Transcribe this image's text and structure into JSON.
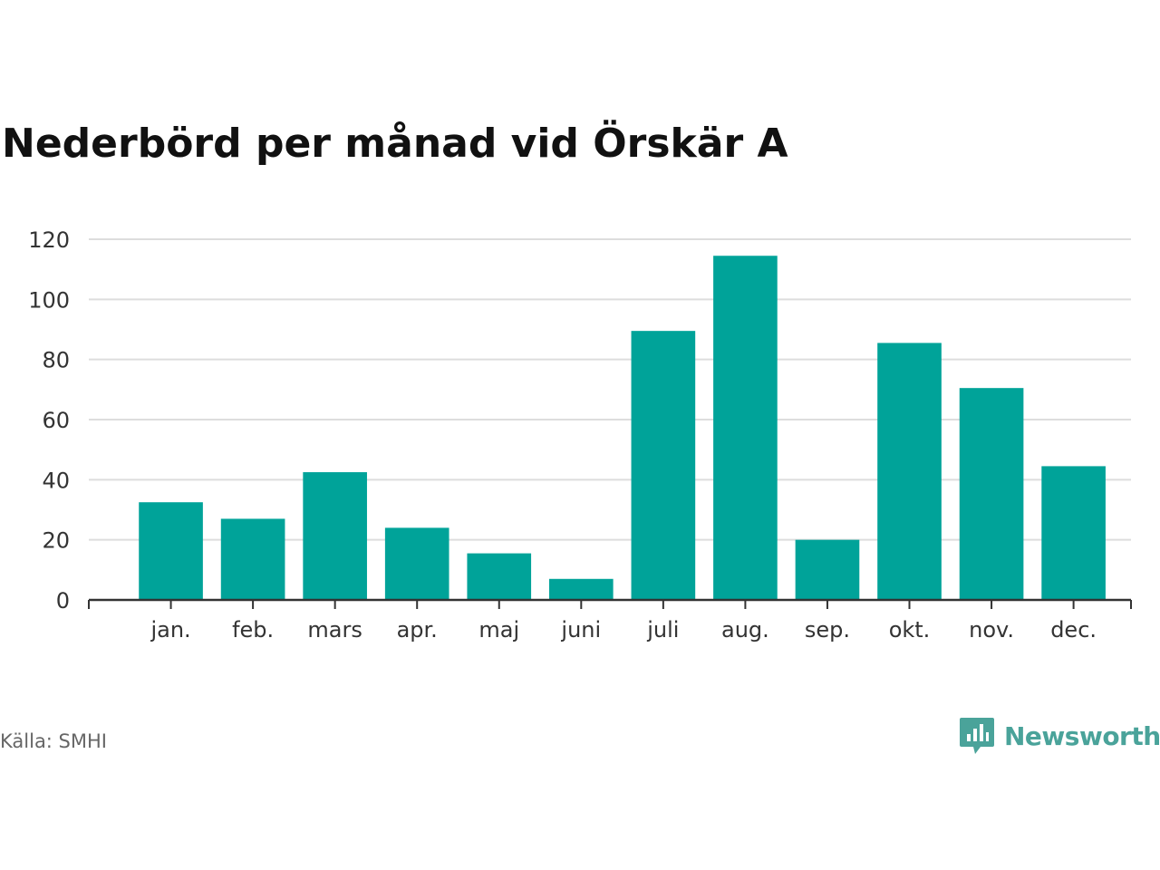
{
  "title": "Nederbörd per månad vid Örskär A",
  "source": "Källa: SMHI",
  "brand": {
    "name": "Newsworthy",
    "icon": "newsworthy-logo-icon",
    "color": "#4aa39a"
  },
  "chart_data": {
    "type": "bar",
    "categories": [
      "jan.",
      "feb.",
      "mars",
      "apr.",
      "maj",
      "juni",
      "juli",
      "aug.",
      "sep.",
      "okt.",
      "nov.",
      "dec."
    ],
    "values": [
      32.5,
      27,
      42.5,
      24,
      15.5,
      7,
      89.5,
      114.5,
      20,
      85.5,
      70.5,
      44.5
    ],
    "ylim": [
      0,
      120
    ],
    "yticks": [
      0,
      20,
      40,
      60,
      80,
      100,
      120
    ],
    "grid": true,
    "bar_color": "#00a399",
    "grid_color": "#dddddd",
    "axis_color": "#333333"
  }
}
